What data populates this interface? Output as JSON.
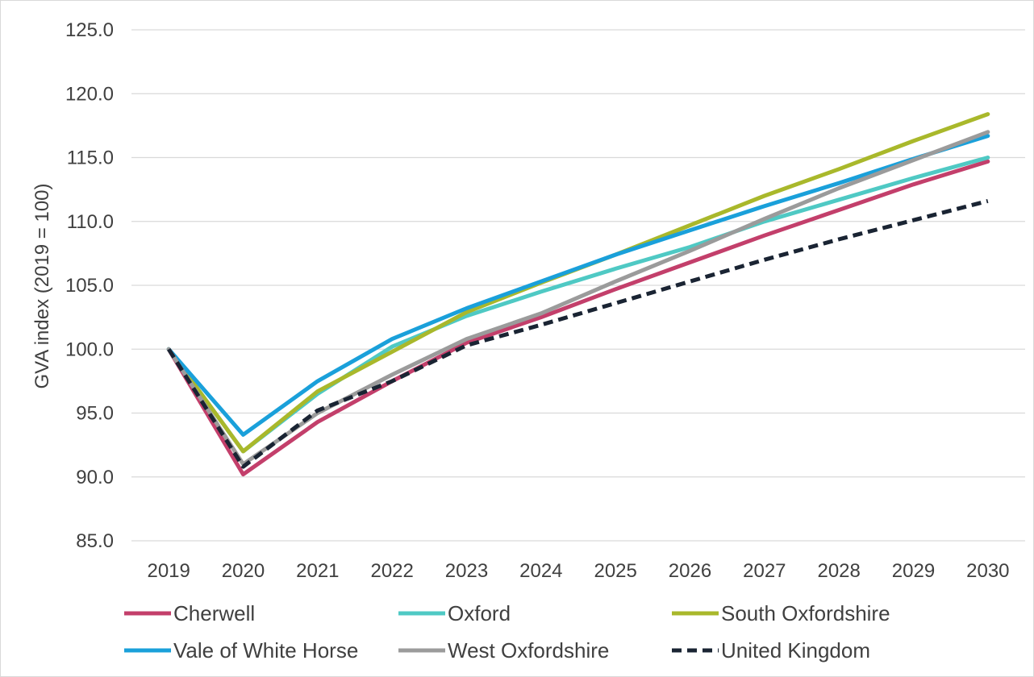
{
  "chart_data": {
    "type": "line",
    "title": "",
    "xlabel": "",
    "ylabel": "GVA index (2019 = 100)",
    "x": [
      "2019",
      "2020",
      "2021",
      "2022",
      "2023",
      "2024",
      "2025",
      "2026",
      "2027",
      "2028",
      "2029",
      "2030"
    ],
    "ylim": [
      85,
      125
    ],
    "yticks": [
      "85.0",
      "90.0",
      "95.0",
      "100.0",
      "105.0",
      "110.0",
      "115.0",
      "120.0",
      "125.0"
    ],
    "grid": true,
    "legend_position": "bottom",
    "series": [
      {
        "name": "Cherwell",
        "color": "#C33F6B",
        "dash": false,
        "values": [
          100.0,
          90.2,
          94.3,
          97.5,
          100.5,
          102.5,
          104.7,
          106.8,
          108.9,
          110.9,
          112.9,
          114.7
        ]
      },
      {
        "name": "Oxford",
        "color": "#4FC9C4",
        "dash": false,
        "values": [
          100.0,
          92.0,
          96.5,
          100.2,
          102.6,
          104.5,
          106.3,
          108.0,
          110.0,
          111.7,
          113.4,
          115.0
        ]
      },
      {
        "name": "South Oxfordshire",
        "color": "#A9B82B",
        "dash": false,
        "values": [
          100.0,
          92.0,
          96.7,
          99.8,
          102.9,
          105.2,
          107.4,
          109.7,
          112.0,
          114.1,
          116.3,
          118.4
        ]
      },
      {
        "name": "Vale of White Horse",
        "color": "#1AA0DA",
        "dash": false,
        "values": [
          100.0,
          93.3,
          97.5,
          100.8,
          103.2,
          105.3,
          107.4,
          109.3,
          111.2,
          113.0,
          114.9,
          116.7
        ]
      },
      {
        "name": "West Oxfordshire",
        "color": "#9B9B9B",
        "dash": false,
        "values": [
          100.0,
          91.0,
          95.0,
          98.0,
          100.8,
          102.8,
          105.3,
          107.7,
          110.2,
          112.6,
          114.8,
          117.0
        ]
      },
      {
        "name": "United Kingdom",
        "color": "#1A2433",
        "dash": true,
        "values": [
          100.0,
          90.8,
          95.2,
          97.5,
          100.3,
          101.9,
          103.6,
          105.3,
          107.0,
          108.6,
          110.1,
          111.6
        ]
      }
    ]
  }
}
